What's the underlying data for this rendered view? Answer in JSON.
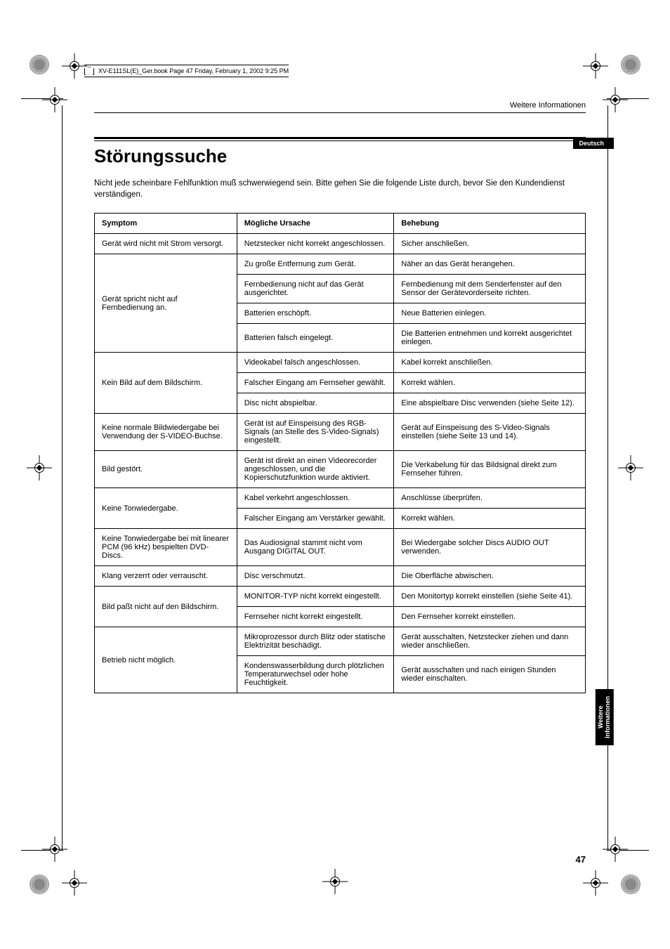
{
  "meta": {
    "header_line": "XV-E111SL(E)_Ger.book  Page 47  Friday, February 1, 2002  9:25 PM"
  },
  "running_head": "Weitere Informationen",
  "lang_tab": "Deutsch",
  "title": "Störungssuche",
  "intro": "Nicht jede scheinbare Fehlfunktion muß schwerwiegend sein. Bitte gehen Sie die folgende Liste durch, bevor Sie den Kundendienst verständigen.",
  "table": {
    "headers": {
      "symptom": "Symptom",
      "cause": "Mögliche Ursache",
      "fix": "Behebung"
    },
    "groups": [
      {
        "symptom": "Gerät wird nicht mit Strom versorgt.",
        "rows": [
          {
            "cause": "Netzstecker nicht korrekt angeschlossen.",
            "fix": "Sicher anschließen."
          }
        ]
      },
      {
        "symptom": "Gerät spricht nicht auf Fernbedienung an.",
        "rows": [
          {
            "cause": "Zu große Entfernung zum Gerät.",
            "fix": "Näher an das Gerät herangehen."
          },
          {
            "cause": "Fernbedienung nicht auf das Gerät ausgerichtet.",
            "fix": "Fernbedienung mit dem Senderfenster auf den Sensor der Gerätevorderseite richten."
          },
          {
            "cause": "Batterien erschöpft.",
            "fix": "Neue Batterien einlegen."
          },
          {
            "cause": "Batterien falsch eingelegt.",
            "fix": "Die Batterien entnehmen und korrekt ausgerichtet einlegen."
          }
        ]
      },
      {
        "symptom": "Kein Bild auf dem Bildschirm.",
        "rows": [
          {
            "cause": "Videokabel falsch angeschlossen.",
            "fix": "Kabel korrekt anschließen."
          },
          {
            "cause": "Falscher Eingang am Fernseher gewählt.",
            "fix": "Korrekt wählen."
          },
          {
            "cause": "Disc nicht abspielbar.",
            "fix": "Eine abspielbare Disc verwenden (siehe Seite 12)."
          }
        ]
      },
      {
        "symptom": "Keine normale Bildwiedergabe bei Verwendung der S-VIDEO-Buchse.",
        "rows": [
          {
            "cause": "Gerät ist auf Einspeisung des RGB-Signals (an Stelle des S-Video-Signals) eingestellt.",
            "fix": "Gerät auf Einspeisung des S-Video-Signals einstellen (siehe Seite 13 und 14)."
          }
        ]
      },
      {
        "symptom": "Bild gestört.",
        "rows": [
          {
            "cause": "Gerät ist direkt an einen Videorecorder angeschlossen, und die Kopierschutzfunktion wurde aktiviert.",
            "fix": "Die Verkabelung für das Bildsignal direkt zum Fernseher führen."
          }
        ]
      },
      {
        "symptom": "Keine Tonwiedergabe.",
        "rows": [
          {
            "cause": "Kabel verkehrt angeschlossen.",
            "fix": "Anschlüsse überprüfen."
          },
          {
            "cause": "Falscher Eingang am Verstärker gewählt.",
            "fix": "Korrekt wählen."
          }
        ]
      },
      {
        "symptom": "Keine Tonwiedergabe bei mit linearer PCM (96 kHz) bespielten DVD-Discs.",
        "rows": [
          {
            "cause": "Das Audiosignal stammt nicht vom Ausgang DIGITAL OUT.",
            "fix": "Bei Wiedergabe solcher Discs AUDIO OUT verwenden."
          }
        ]
      },
      {
        "symptom": "Klang verzerrt oder verrauscht.",
        "rows": [
          {
            "cause": "Disc verschmutzt.",
            "fix": "Die Oberfläche abwischen."
          }
        ]
      },
      {
        "symptom": "Bild paßt nicht auf den Bildschirm.",
        "rows": [
          {
            "cause": "MONITOR-TYP nicht korrekt eingestellt.",
            "fix": "Den Monitortyp korrekt einstellen (siehe Seite 41)."
          },
          {
            "cause": "Fernseher nicht korrekt eingestellt.",
            "fix": "Den Fernseher korrekt einstellen."
          }
        ]
      },
      {
        "symptom": "Betrieb nicht möglich.",
        "rows": [
          {
            "cause": "Mikroprozessor durch Blitz oder statische Elektrizität beschädigt.",
            "fix": "Gerät ausschalten, Netzstecker ziehen und dann wieder anschließen."
          },
          {
            "cause": "Kondenswasserbildung durch plötzlichen Temperaturwechsel oder hohe Feuchtigkeit.",
            "fix": "Gerät ausschalten und nach einigen Stunden wieder einschalten."
          }
        ]
      }
    ]
  },
  "side_tab": {
    "line1": "Weitere",
    "line2": "Informationen"
  },
  "page_number": "47"
}
